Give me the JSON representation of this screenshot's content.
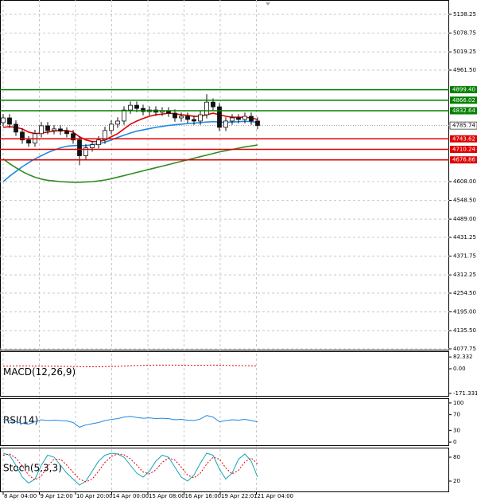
{
  "chart_data": [
    {
      "type": "candlestick",
      "grid": true,
      "ylim": [
        4072.7,
        5183.7
      ],
      "yticks": [
        5138.25,
        5078.75,
        5019.25,
        {
          "value": 4961.5,
          "label": "4961.50"
        },
        {
          "value": 4608,
          "label": "4608.00"
        },
        {
          "value": 4548.5,
          "label": "4548.50"
        },
        {
          "value": 4489,
          "label": "4489.00"
        },
        4431.25,
        4371.75,
        4312.25,
        {
          "value": 4254.5,
          "label": "4254.50"
        },
        {
          "value": 4195,
          "label": "4195.00"
        },
        {
          "value": 4135.5,
          "label": "4135.50"
        },
        4077.75
      ],
      "xtick_labels": [
        "8 Apr 04:00",
        "9 Apr 12:00",
        "10 Apr 20:00",
        "14 Apr 00:00",
        "15 Apr 08:00",
        "16 Apr 16:00",
        "19 Apr 22:01",
        "21 Apr 04:00"
      ],
      "open": [
        4795,
        4810,
        4790,
        4765,
        4740,
        4730,
        4760,
        4785,
        4770,
        4775,
        4768,
        4760,
        4740,
        4690,
        4715,
        4725,
        4740,
        4770,
        4790,
        4800,
        4835,
        4850,
        4840,
        4830,
        4835,
        4828,
        4832,
        4825,
        4810,
        4815,
        4805,
        4800,
        4820,
        4860,
        4845,
        4780,
        4800,
        4810,
        4805,
        4815,
        4800
      ],
      "high": [
        4822,
        4822,
        4802,
        4777,
        4752,
        4772,
        4797,
        4797,
        4787,
        4787,
        4780,
        4772,
        4752,
        4727,
        4737,
        4752,
        4782,
        4802,
        4812,
        4847,
        4862,
        4862,
        4852,
        4847,
        4847,
        4844,
        4844,
        4837,
        4827,
        4827,
        4817,
        4832,
        4885,
        4872,
        4857,
        4812,
        4822,
        4822,
        4827,
        4827,
        4812
      ],
      "low": [
        4783,
        4778,
        4753,
        4728,
        4718,
        4718,
        4748,
        4758,
        4758,
        4756,
        4748,
        4728,
        4660,
        4678,
        4703,
        4713,
        4728,
        4758,
        4778,
        4788,
        4823,
        4828,
        4818,
        4818,
        4816,
        4816,
        4813,
        4798,
        4798,
        4793,
        4788,
        4788,
        4808,
        4833,
        4768,
        4768,
        4788,
        4793,
        4793,
        4788,
        4774
      ],
      "close": [
        4810,
        4790,
        4765,
        4740,
        4730,
        4760,
        4785,
        4770,
        4775,
        4768,
        4760,
        4740,
        4690,
        4715,
        4725,
        4740,
        4770,
        4790,
        4800,
        4835,
        4850,
        4840,
        4830,
        4835,
        4828,
        4832,
        4825,
        4810,
        4815,
        4805,
        4800,
        4820,
        4860,
        4845,
        4780,
        4800,
        4810,
        4805,
        4815,
        4800,
        4786
      ],
      "series": [
        {
          "color": "#e00000",
          "values": [
            4780,
            4782,
            4780,
            4775,
            4765,
            4760,
            4762,
            4765,
            4768,
            4770,
            4770,
            4765,
            4750,
            4740,
            4735,
            4735,
            4740,
            4750,
            4760,
            4775,
            4790,
            4800,
            4808,
            4815,
            4820,
            4822,
            4825,
            4823,
            4820,
            4818,
            4815,
            4815,
            4820,
            4825,
            4820,
            4815,
            4812,
            4812,
            4812,
            4810,
            4805
          ]
        },
        {
          "color": "#1e88e5",
          "values": [
            4608,
            4625,
            4640,
            4655,
            4668,
            4680,
            4690,
            4700,
            4708,
            4715,
            4720,
            4722,
            4722,
            4722,
            4725,
            4728,
            4733,
            4740,
            4748,
            4755,
            4762,
            4768,
            4772,
            4776,
            4780,
            4783,
            4786,
            4788,
            4790,
            4792,
            4793,
            4795,
            4797,
            4798,
            4797,
            4796,
            4797,
            4798,
            4799,
            4798,
            4796
          ]
        },
        {
          "color": "#2e8b22",
          "values": [
            4680,
            4665,
            4652,
            4640,
            4630,
            4622,
            4616,
            4612,
            4610,
            4608,
            4607,
            4606,
            4606,
            4607,
            4608,
            4610,
            4613,
            4617,
            4622,
            4627,
            4632,
            4637,
            4642,
            4647,
            4652,
            4657,
            4662,
            4667,
            4672,
            4677,
            4682,
            4687,
            4692,
            4697,
            4702,
            4706,
            4710,
            4714,
            4718,
            4721,
            4724
          ]
        }
      ],
      "levels": [
        {
          "value": 4899.4,
          "label": "4899.40",
          "color": "#008000"
        },
        {
          "value": 4866.02,
          "label": "4866.02",
          "color": "#008000"
        },
        {
          "value": 4832.64,
          "label": "4832.64",
          "color": "#008000"
        },
        {
          "value": 4743.62,
          "label": "4743.62",
          "color": "#e00000"
        },
        {
          "value": 4710.24,
          "label": "4710.24",
          "color": "#e00000"
        },
        {
          "value": 4676.86,
          "label": "4676.86",
          "color": "#e00000"
        }
      ],
      "last": {
        "value": 4785.74,
        "label": "4785.74"
      }
    },
    {
      "type": "line",
      "title": "MACD(12,26,9)",
      "ylim": [
        -194,
        122
      ],
      "yticks": [
        82.332,
        {
          "value": 0,
          "label": "0.00"
        },
        -171.331
      ],
      "series": [
        {
          "color": "#e00000",
          "dash": true,
          "values": [
            18,
            19,
            20,
            20,
            20,
            19,
            18,
            18,
            18,
            17,
            17,
            16,
            15,
            14,
            14,
            14,
            15,
            16,
            17,
            19,
            21,
            23,
            24,
            25,
            26,
            26,
            26,
            26,
            25,
            25,
            24,
            24,
            25,
            26,
            25,
            24,
            23,
            22,
            22,
            21,
            20
          ]
        }
      ]
    },
    {
      "type": "line",
      "title": "RSI(14)",
      "ylim": [
        -10,
        112
      ],
      "yticks": [
        100,
        70,
        30,
        0
      ],
      "series": [
        {
          "color": "#1e88e5",
          "values": [
            58,
            55,
            52,
            48,
            46,
            52,
            57,
            55,
            56,
            55,
            54,
            50,
            38,
            44,
            47,
            50,
            55,
            58,
            60,
            64,
            66,
            63,
            61,
            62,
            60,
            61,
            60,
            57,
            58,
            56,
            55,
            59,
            68,
            64,
            52,
            55,
            57,
            56,
            58,
            55,
            52
          ]
        }
      ]
    },
    {
      "type": "line",
      "title": "Stoch(5,3,3)",
      "ylim": [
        -8,
        104
      ],
      "yticks": [
        80,
        20
      ],
      "series": [
        {
          "color": "#17a2b8",
          "values": [
            90,
            85,
            60,
            30,
            15,
            25,
            60,
            85,
            80,
            60,
            40,
            25,
            10,
            20,
            45,
            70,
            85,
            90,
            88,
            80,
            60,
            40,
            30,
            45,
            70,
            85,
            80,
            55,
            30,
            20,
            35,
            65,
            90,
            85,
            50,
            25,
            40,
            75,
            88,
            70,
            30
          ]
        },
        {
          "color": "#e00000",
          "dash": true,
          "values": [
            85,
            88,
            78,
            58,
            35,
            23,
            33,
            57,
            75,
            75,
            60,
            42,
            25,
            18,
            25,
            45,
            67,
            82,
            88,
            86,
            76,
            60,
            43,
            38,
            48,
            67,
            78,
            73,
            55,
            35,
            28,
            40,
            63,
            80,
            75,
            53,
            38,
            47,
            68,
            78,
            63
          ]
        }
      ]
    }
  ]
}
